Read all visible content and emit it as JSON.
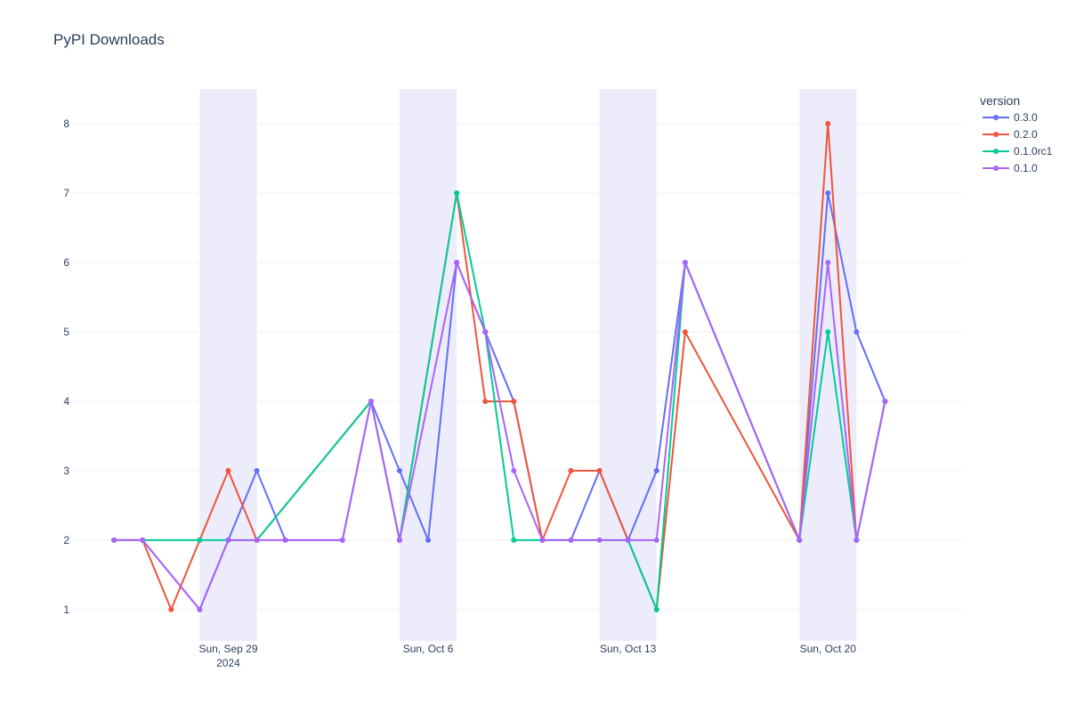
{
  "chart_data": {
    "type": "line",
    "title": "PyPI Downloads",
    "xlabel": "",
    "ylabel": "",
    "x_tick_labels": [
      {
        "date": "2024-09-29",
        "line1": "Sun, Sep 29",
        "line2": "2024"
      },
      {
        "date": "2024-10-06",
        "line1": "Sun, Oct 6",
        "line2": ""
      },
      {
        "date": "2024-10-13",
        "line1": "Sun, Oct 13",
        "line2": ""
      },
      {
        "date": "2024-10-20",
        "line1": "Sun, Oct 20",
        "line2": ""
      }
    ],
    "y_ticks": [
      1,
      2,
      3,
      4,
      5,
      6,
      7,
      8
    ],
    "xlim": [
      "2024-09-23T12:00",
      "2024-10-24T16:00"
    ],
    "ylim": [
      0.55,
      8.5
    ],
    "weekend_bands": [
      [
        "2024-09-28",
        "2024-09-30"
      ],
      [
        "2024-10-05",
        "2024-10-07"
      ],
      [
        "2024-10-12",
        "2024-10-14"
      ],
      [
        "2024-10-19",
        "2024-10-21"
      ]
    ],
    "grid": true,
    "legend_title": "version",
    "legend_position": "top-right",
    "series": [
      {
        "name": "0.3.0",
        "color": "#636efa",
        "points": [
          [
            "2024-09-25",
            2
          ],
          [
            "2024-09-26",
            2
          ],
          [
            "2024-09-28",
            1
          ],
          [
            "2024-09-29",
            2
          ],
          [
            "2024-09-30",
            3
          ],
          [
            "2024-10-01",
            2
          ],
          [
            "2024-10-03",
            2
          ],
          [
            "2024-10-04",
            4
          ],
          [
            "2024-10-05",
            3
          ],
          [
            "2024-10-06",
            2
          ],
          [
            "2024-10-07",
            6
          ],
          [
            "2024-10-08",
            5
          ],
          [
            "2024-10-09",
            4
          ],
          [
            "2024-10-10",
            2
          ],
          [
            "2024-10-11",
            2
          ],
          [
            "2024-10-12",
            3
          ],
          [
            "2024-10-13",
            2
          ],
          [
            "2024-10-14",
            3
          ],
          [
            "2024-10-15",
            6
          ],
          [
            "2024-10-19",
            2
          ],
          [
            "2024-10-20",
            7
          ],
          [
            "2024-10-21",
            5
          ],
          [
            "2024-10-22",
            4
          ]
        ]
      },
      {
        "name": "0.2.0",
        "color": "#ef553b",
        "points": [
          [
            "2024-09-25",
            2
          ],
          [
            "2024-09-26",
            2
          ],
          [
            "2024-09-27",
            1
          ],
          [
            "2024-09-28",
            2
          ],
          [
            "2024-09-29",
            3
          ],
          [
            "2024-09-30",
            2
          ],
          [
            "2024-10-04",
            4
          ],
          [
            "2024-10-05",
            2
          ],
          [
            "2024-10-07",
            7
          ],
          [
            "2024-10-08",
            4
          ],
          [
            "2024-10-09",
            4
          ],
          [
            "2024-10-10",
            2
          ],
          [
            "2024-10-11",
            3
          ],
          [
            "2024-10-12",
            3
          ],
          [
            "2024-10-13",
            2
          ],
          [
            "2024-10-14",
            1
          ],
          [
            "2024-10-15",
            5
          ],
          [
            "2024-10-19",
            2
          ],
          [
            "2024-10-20",
            8
          ],
          [
            "2024-10-21",
            2
          ],
          [
            "2024-10-22",
            4
          ]
        ]
      },
      {
        "name": "0.1.0rc1",
        "color": "#00cc96",
        "points": [
          [
            "2024-09-25",
            2
          ],
          [
            "2024-09-26",
            2
          ],
          [
            "2024-09-28",
            2
          ],
          [
            "2024-09-29",
            2
          ],
          [
            "2024-09-30",
            2
          ],
          [
            "2024-10-04",
            4
          ],
          [
            "2024-10-05",
            2
          ],
          [
            "2024-10-07",
            7
          ],
          [
            "2024-10-08",
            5
          ],
          [
            "2024-10-09",
            2
          ],
          [
            "2024-10-10",
            2
          ],
          [
            "2024-10-13",
            2
          ],
          [
            "2024-10-14",
            1
          ],
          [
            "2024-10-15",
            6
          ],
          [
            "2024-10-19",
            2
          ],
          [
            "2024-10-20",
            5
          ],
          [
            "2024-10-21",
            2
          ],
          [
            "2024-10-22",
            4
          ]
        ]
      },
      {
        "name": "0.1.0",
        "color": "#ab63fa",
        "points": [
          [
            "2024-09-25",
            2
          ],
          [
            "2024-09-26",
            2
          ],
          [
            "2024-09-28",
            1
          ],
          [
            "2024-09-29",
            2
          ],
          [
            "2024-09-30",
            2
          ],
          [
            "2024-10-01",
            2
          ],
          [
            "2024-10-03",
            2
          ],
          [
            "2024-10-04",
            4
          ],
          [
            "2024-10-05",
            2
          ],
          [
            "2024-10-07",
            6
          ],
          [
            "2024-10-08",
            5
          ],
          [
            "2024-10-09",
            3
          ],
          [
            "2024-10-10",
            2
          ],
          [
            "2024-10-11",
            2
          ],
          [
            "2024-10-12",
            2
          ],
          [
            "2024-10-13",
            2
          ],
          [
            "2024-10-14",
            2
          ],
          [
            "2024-10-15",
            6
          ],
          [
            "2024-10-19",
            2
          ],
          [
            "2024-10-20",
            6
          ],
          [
            "2024-10-21",
            2
          ],
          [
            "2024-10-22",
            4
          ]
        ]
      }
    ]
  }
}
